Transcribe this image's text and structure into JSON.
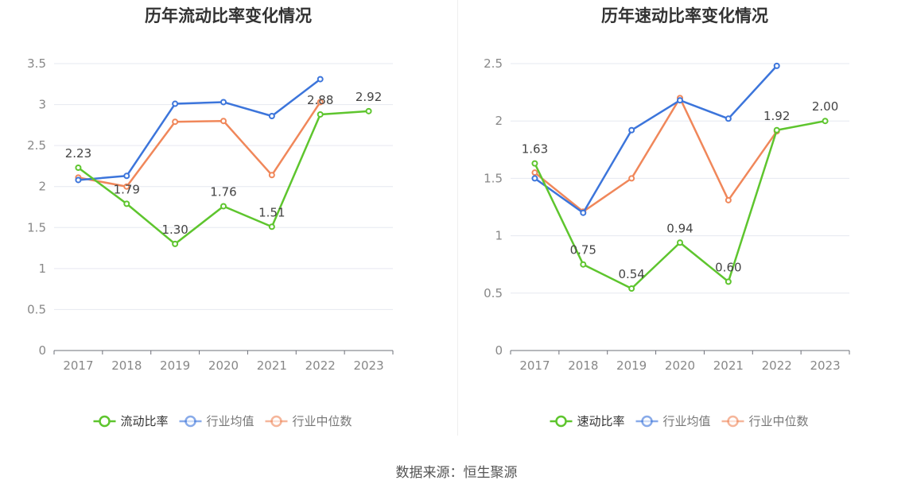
{
  "source": "数据来源：恒生聚源",
  "chart_data": [
    {
      "type": "line",
      "title": "历年流动比率变化情况",
      "categories": [
        "2017",
        "2018",
        "2019",
        "2020",
        "2021",
        "2022",
        "2023"
      ],
      "ylim": [
        0,
        3.5
      ],
      "yticks": [
        "0",
        "0.5",
        "1",
        "1.5",
        "2",
        "2.5",
        "3",
        "3.5"
      ],
      "grid": true,
      "legend_position": "bottom",
      "series": [
        {
          "name": "流动比率",
          "color": "#5ec52e",
          "values": [
            2.23,
            1.79,
            1.3,
            1.76,
            1.51,
            2.88,
            2.92
          ],
          "labels": [
            "2.23",
            "1.79",
            "1.30",
            "1.76",
            "1.51",
            "2.88",
            "2.92"
          ]
        },
        {
          "name": "行业均值",
          "color": "#3c75db",
          "values": [
            2.08,
            2.13,
            3.01,
            3.03,
            2.86,
            3.31,
            null
          ]
        },
        {
          "name": "行业中位数",
          "color": "#f0875a",
          "values": [
            2.11,
            2.0,
            2.79,
            2.8,
            2.14,
            3.03,
            null
          ]
        }
      ]
    },
    {
      "type": "line",
      "title": "历年速动比率变化情况",
      "categories": [
        "2017",
        "2018",
        "2019",
        "2020",
        "2021",
        "2022",
        "2023"
      ],
      "ylim": [
        0,
        2.5
      ],
      "yticks": [
        "0",
        "0.5",
        "1",
        "1.5",
        "2",
        "2.5"
      ],
      "grid": true,
      "legend_position": "bottom",
      "series": [
        {
          "name": "速动比率",
          "color": "#5ec52e",
          "values": [
            1.63,
            0.75,
            0.54,
            0.94,
            0.6,
            1.92,
            2.0
          ],
          "labels": [
            "1.63",
            "0.75",
            "0.54",
            "0.94",
            "0.60",
            "1.92",
            "2.00"
          ]
        },
        {
          "name": "行业均值",
          "color": "#3c75db",
          "values": [
            1.5,
            1.2,
            1.92,
            2.18,
            2.02,
            2.48,
            null
          ]
        },
        {
          "name": "行业中位数",
          "color": "#f0875a",
          "values": [
            1.55,
            1.21,
            1.5,
            2.2,
            1.31,
            1.91,
            null
          ]
        }
      ]
    }
  ]
}
